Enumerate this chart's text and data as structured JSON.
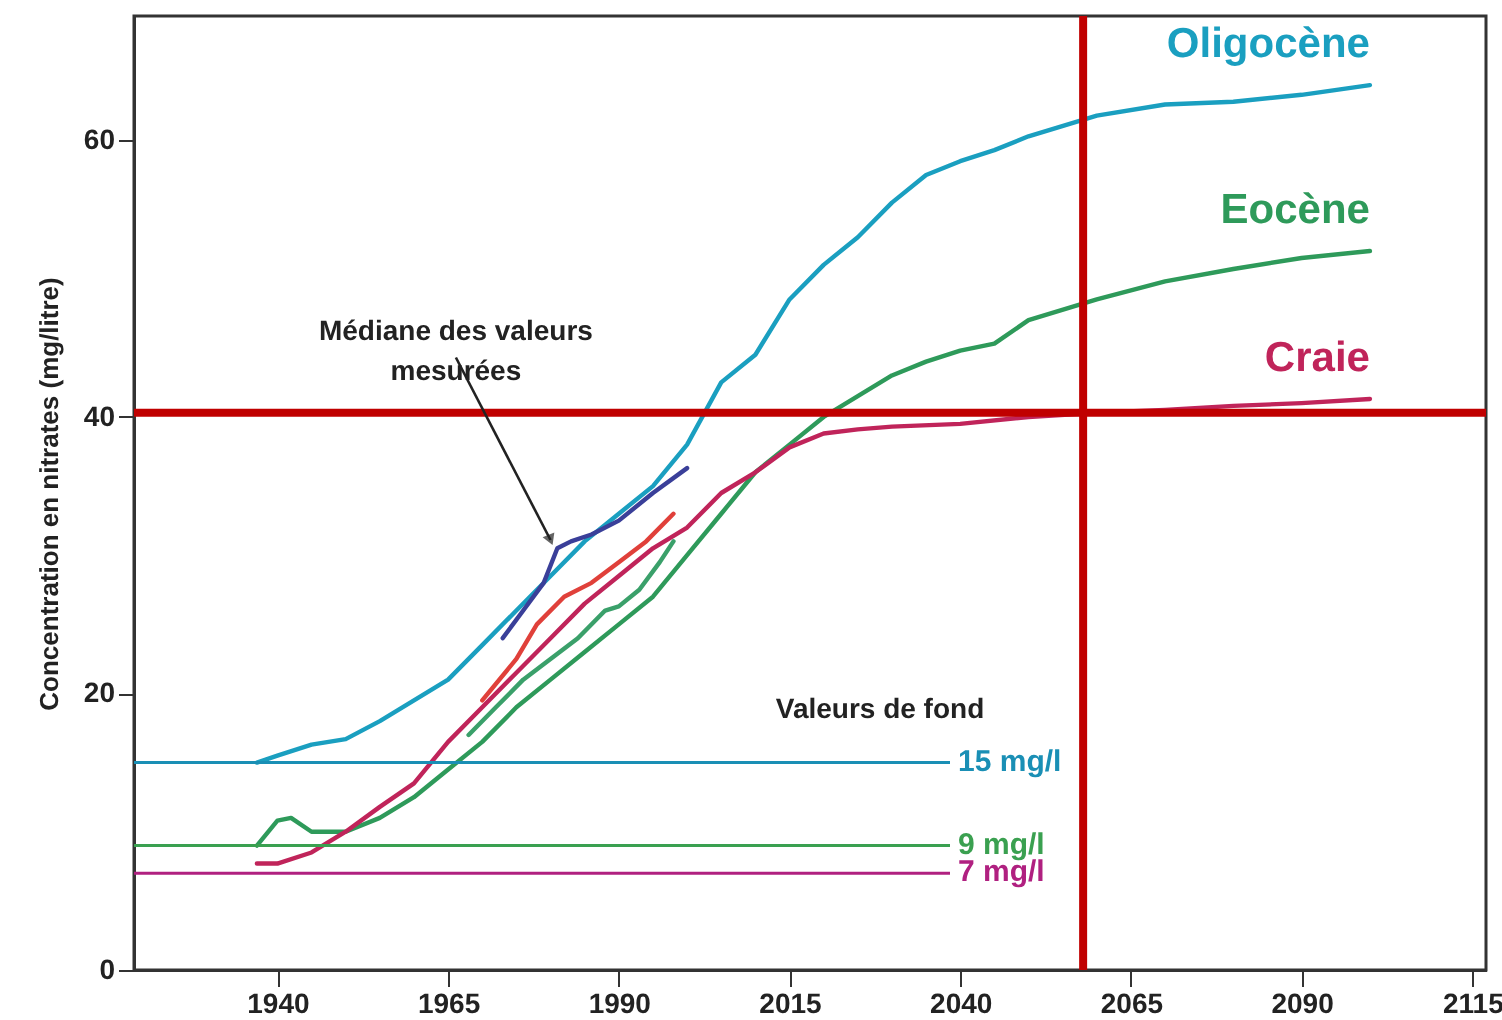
{
  "chart_data": {
    "type": "line",
    "ylabel": "Concentration en nitrates (mg/litre)",
    "xlim": [
      1919,
      2117
    ],
    "xticks": [
      1940,
      1965,
      1990,
      2015,
      2040,
      2065,
      2090,
      2115
    ],
    "ylim": [
      0,
      69
    ],
    "yticks": [
      0,
      20,
      40,
      60
    ],
    "grid": false,
    "series": [
      {
        "name": "Oligocène",
        "color": "#1a9fc0",
        "x": [
          1937,
          1940,
          1945,
          1950,
          1955,
          1960,
          1965,
          1970,
          1975,
          1980,
          1985,
          1990,
          1995,
          2000,
          2005,
          2010,
          2015,
          2020,
          2025,
          2030,
          2035,
          2040,
          2045,
          2050,
          2060,
          2070,
          2080,
          2090,
          2100
        ],
        "values": [
          15,
          15.5,
          16.3,
          16.7,
          18,
          19.5,
          21,
          23.5,
          26,
          28.5,
          31,
          33,
          35,
          38,
          42.5,
          44.5,
          48.5,
          51,
          53,
          55.5,
          57.5,
          58.5,
          59.3,
          60.3,
          61.8,
          62.6,
          62.8,
          63.3,
          64
        ]
      },
      {
        "name": "Eocène",
        "color": "#2e9a5a",
        "x": [
          1937,
          1940,
          1942,
          1945,
          1950,
          1955,
          1960,
          1965,
          1970,
          1975,
          1980,
          1985,
          1990,
          1995,
          2000,
          2005,
          2010,
          2015,
          2020,
          2025,
          2030,
          2035,
          2040,
          2045,
          2050,
          2060,
          2070,
          2080,
          2090,
          2100
        ],
        "values": [
          9,
          10.8,
          11,
          10,
          10,
          11,
          12.5,
          14.5,
          16.5,
          19,
          21,
          23,
          25,
          27,
          30,
          33,
          36,
          38,
          40,
          41.5,
          43,
          44,
          44.8,
          45.3,
          47,
          48.5,
          49.8,
          50.7,
          51.5,
          52
        ]
      },
      {
        "name": "Craie",
        "color": "#c0245a",
        "x": [
          1937,
          1940,
          1945,
          1950,
          1955,
          1960,
          1965,
          1970,
          1975,
          1980,
          1985,
          1990,
          1995,
          2000,
          2005,
          2010,
          2015,
          2020,
          2025,
          2030,
          2040,
          2050,
          2060,
          2070,
          2080,
          2090,
          2100
        ],
        "values": [
          7.7,
          7.7,
          8.5,
          10,
          11.8,
          13.5,
          16.5,
          19,
          21.5,
          24,
          26.5,
          28.5,
          30.5,
          32,
          34.5,
          36,
          37.8,
          38.8,
          39.1,
          39.3,
          39.5,
          40,
          40.3,
          40.5,
          40.8,
          41,
          41.3
        ]
      },
      {
        "color": "#e0403a",
        "x": [
          1970,
          1975,
          1978,
          1982,
          1986,
          1990,
          1994,
          1998
        ],
        "values": [
          19.5,
          22.5,
          25,
          27,
          28,
          29.5,
          31,
          33
        ]
      },
      {
        "color": "#3aa06a",
        "x": [
          1968,
          1972,
          1976,
          1980,
          1984,
          1988,
          1990,
          1993,
          1996,
          1998
        ],
        "values": [
          17,
          19,
          21,
          22.5,
          24,
          26,
          26.3,
          27.5,
          29.5,
          31
        ]
      },
      {
        "color": "#3a3f99",
        "x": [
          1973,
          1976,
          1979,
          1981,
          1983,
          1986,
          1990,
          1995,
          2000
        ],
        "values": [
          24,
          26,
          28,
          30.5,
          31,
          31.5,
          32.5,
          34.5,
          36.3
        ]
      }
    ],
    "ref_lines": [
      {
        "axis": "y",
        "value": 15,
        "label": "15 mg/l",
        "color": "#1a8fb5"
      },
      {
        "axis": "y",
        "value": 9,
        "label": "9 mg/l",
        "color": "#3aa050"
      },
      {
        "axis": "y",
        "value": 7,
        "label": "7 mg/l",
        "color": "#b02080"
      },
      {
        "axis": "x",
        "value": 2058,
        "color": "#c00000"
      },
      {
        "axis": "y",
        "value": 40.3,
        "color": "#c00000"
      }
    ],
    "annotations": [
      {
        "text": "Médiane des valeurs mesurées",
        "x": 1980,
        "y": 30.5
      },
      "Valeurs de fond"
    ]
  }
}
